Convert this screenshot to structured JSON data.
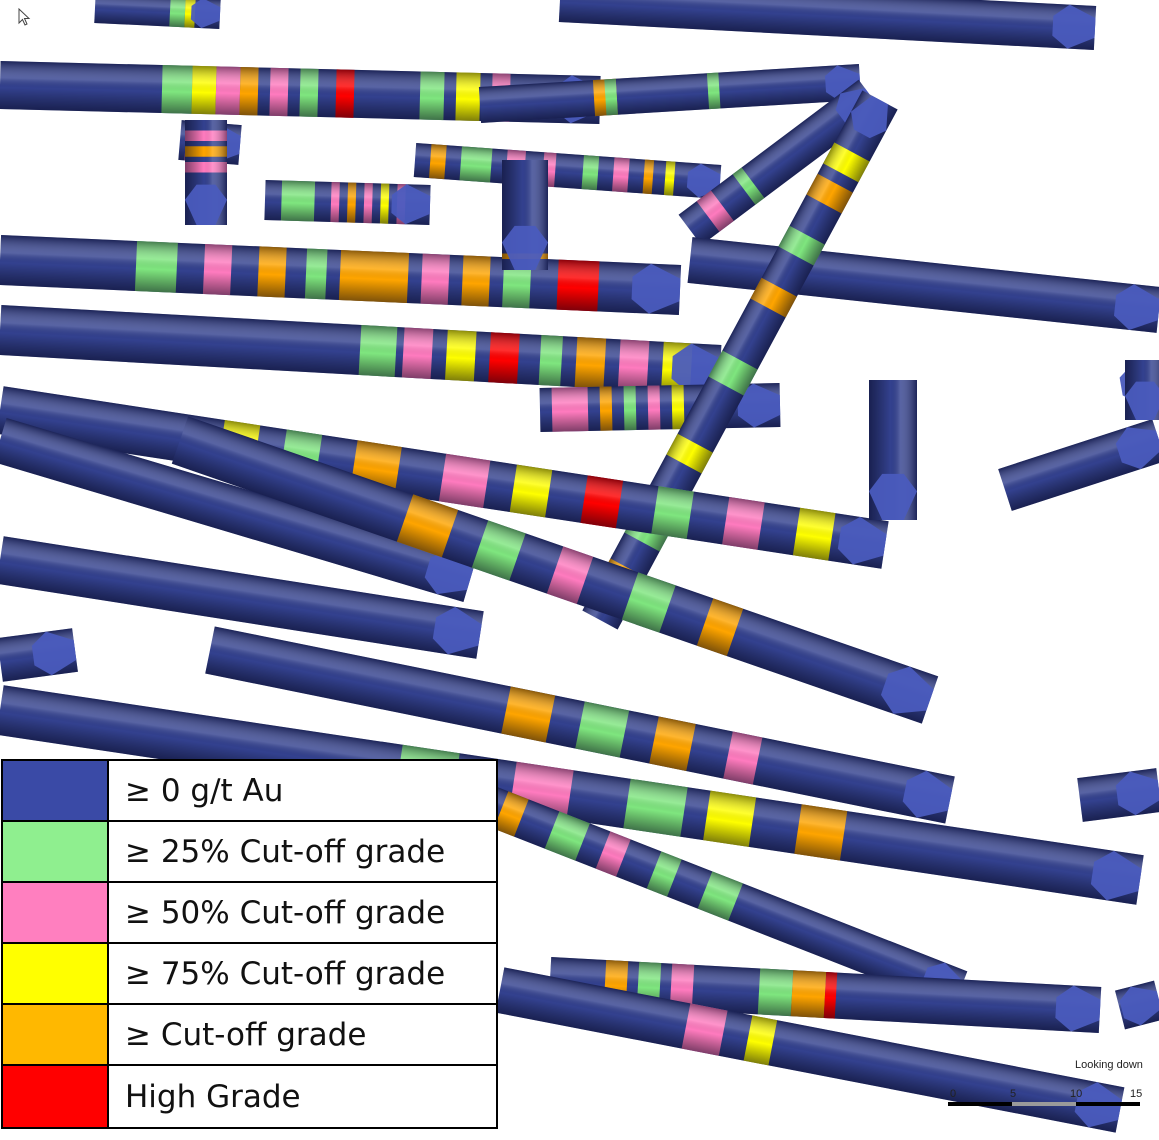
{
  "colors": {
    "tube_base": "#33418f",
    "tube_shade": "#1f2b6a",
    "tube_cap": "#4a5bbd",
    "green": "#7fe67f",
    "pink": "#ff7bbf",
    "yellow": "#ffff00",
    "orange": "#ffa500",
    "red": "#ff0000"
  },
  "legend": {
    "items": [
      {
        "label": "≥ 0 g/t Au",
        "color": "#3a4aa6"
      },
      {
        "label": "≥ 25% Cut-off grade",
        "color": "#8fef8f"
      },
      {
        "label": "≥ 50% Cut-off grade",
        "color": "#ff7fbf"
      },
      {
        "label": "≥ 75% Cut-off grade",
        "color": "#ffff00"
      },
      {
        "label": "≥ Cut-off grade",
        "color": "#ffb800"
      },
      {
        "label": "High Grade",
        "color": "#ff0000"
      }
    ]
  },
  "view": {
    "orientation_label": "Looking down"
  },
  "scale": {
    "ticks": [
      "0",
      "5",
      "10",
      "15"
    ]
  },
  "icons": {
    "cursor": "mouse-pointer-icon"
  }
}
